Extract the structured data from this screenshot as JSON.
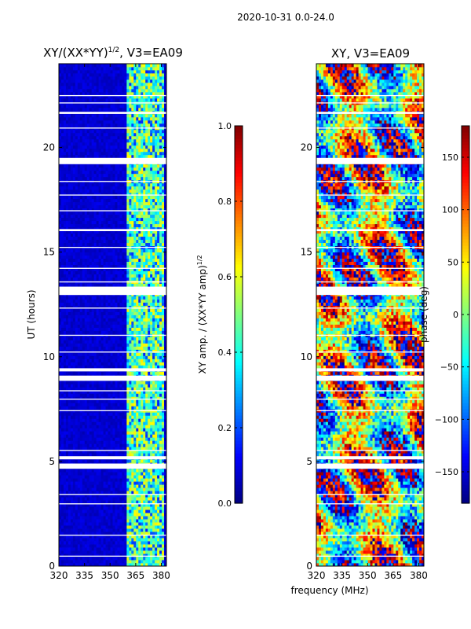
{
  "figure": {
    "suptitle": "2020-10-31 0.0-24.0",
    "shared_xlabel": "frequency (MHz)"
  },
  "chart_data": [
    {
      "type": "heatmap",
      "id": "amp",
      "title": "XY/(XX*YY)",
      "title_exponent": "1/2",
      "title_suffix": ", V3=EA09",
      "xlabel": "",
      "ylabel": "UT (hours)",
      "xlim": [
        320,
        383
      ],
      "ylim": [
        0,
        24
      ],
      "xticks": [
        320,
        335,
        350,
        365,
        380
      ],
      "yticks": [
        0,
        5,
        10,
        15,
        20
      ],
      "colorbar": {
        "label": "XY amp. / (XX*YY amp)",
        "label_exponent": "1/2",
        "range": [
          0.0,
          1.0
        ],
        "ticks": [
          "0.0",
          "0.2",
          "0.4",
          "0.6",
          "0.8",
          "1.0"
        ],
        "tick_values": [
          0.0,
          0.2,
          0.4,
          0.6,
          0.8,
          1.0
        ],
        "colormap": "jet"
      },
      "high_amplitude_band_mhz": [
        360,
        381
      ],
      "background_amplitude": 0.05,
      "blank_ut_intervals": [
        [
          0.45,
          0.5
        ],
        [
          1.45,
          1.5
        ],
        [
          2.95,
          3.0
        ],
        [
          3.4,
          3.45
        ],
        [
          4.65,
          4.9
        ],
        [
          5.1,
          5.25
        ],
        [
          5.5,
          5.55
        ],
        [
          7.4,
          7.45
        ],
        [
          7.95,
          8.0
        ],
        [
          8.35,
          8.4
        ],
        [
          8.85,
          9.1
        ],
        [
          9.3,
          9.45
        ],
        [
          10.2,
          10.25
        ],
        [
          11.0,
          11.05
        ],
        [
          12.3,
          12.35
        ],
        [
          12.95,
          13.35
        ],
        [
          13.55,
          13.6
        ],
        [
          14.2,
          14.25
        ],
        [
          15.2,
          15.25
        ],
        [
          16.0,
          16.1
        ],
        [
          16.95,
          17.0
        ],
        [
          17.7,
          17.75
        ],
        [
          18.35,
          18.4
        ],
        [
          19.2,
          19.5
        ],
        [
          20.9,
          20.95
        ],
        [
          21.6,
          21.7
        ],
        [
          22.1,
          22.15
        ],
        [
          22.45,
          22.5
        ]
      ]
    },
    {
      "type": "heatmap",
      "id": "phase",
      "title": "XY, V3=EA09",
      "xlabel": "",
      "ylabel": "",
      "xlim": [
        320,
        383
      ],
      "ylim": [
        0,
        24
      ],
      "xticks": [
        320,
        335,
        350,
        365,
        380
      ],
      "yticks": [
        0,
        5,
        10,
        15,
        20
      ],
      "colorbar": {
        "label": "phase (deg)",
        "range": [
          -180,
          180
        ],
        "ticks": [
          "−150",
          "−100",
          "−50",
          "0",
          "50",
          "100",
          "150"
        ],
        "tick_values": [
          -150,
          -100,
          -50,
          0,
          50,
          100,
          150
        ],
        "colormap": "jet"
      },
      "blank_ut_intervals": [
        [
          0.45,
          0.5
        ],
        [
          1.45,
          1.5
        ],
        [
          2.95,
          3.0
        ],
        [
          3.4,
          3.45
        ],
        [
          4.65,
          4.9
        ],
        [
          5.1,
          5.25
        ],
        [
          5.5,
          5.55
        ],
        [
          7.4,
          7.45
        ],
        [
          7.95,
          8.0
        ],
        [
          8.35,
          8.4
        ],
        [
          8.85,
          9.1
        ],
        [
          9.3,
          9.45
        ],
        [
          10.2,
          10.25
        ],
        [
          11.0,
          11.05
        ],
        [
          12.3,
          12.35
        ],
        [
          12.95,
          13.35
        ],
        [
          13.55,
          13.6
        ],
        [
          14.2,
          14.25
        ],
        [
          15.2,
          15.25
        ],
        [
          16.0,
          16.1
        ],
        [
          16.95,
          17.0
        ],
        [
          17.7,
          17.75
        ],
        [
          18.35,
          18.4
        ],
        [
          19.2,
          19.5
        ],
        [
          20.9,
          20.95
        ],
        [
          21.6,
          21.7
        ],
        [
          22.1,
          22.15
        ],
        [
          22.45,
          22.5
        ]
      ]
    }
  ]
}
